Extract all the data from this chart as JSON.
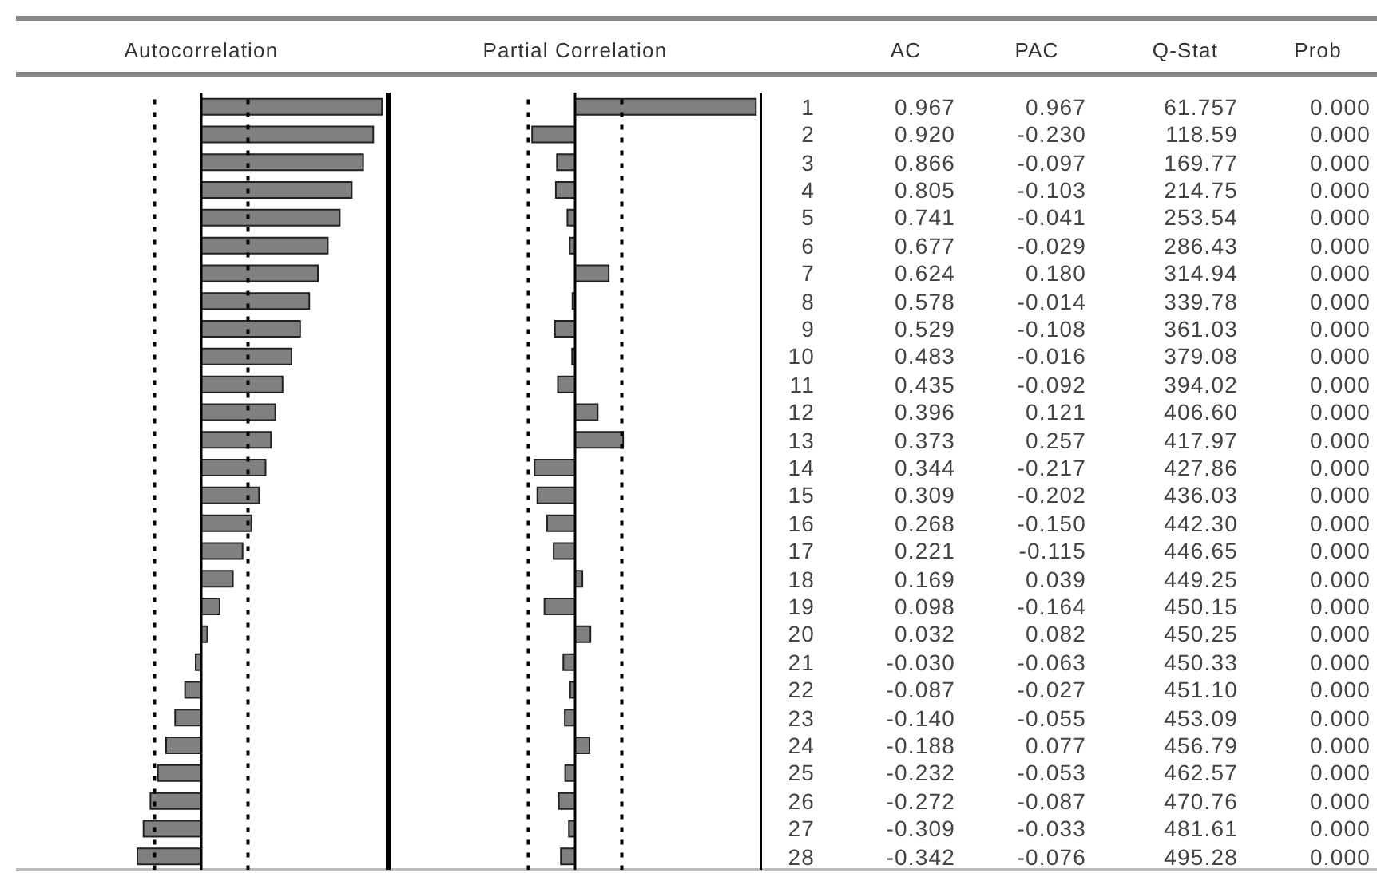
{
  "chart_data": [
    {
      "type": "bar",
      "orientation": "horizontal",
      "title": "Autocorrelation",
      "categories": [
        "1",
        "2",
        "3",
        "4",
        "5",
        "6",
        "7",
        "8",
        "9",
        "10",
        "11",
        "12",
        "13",
        "14",
        "15",
        "16",
        "17",
        "18",
        "19",
        "20",
        "21",
        "22",
        "23",
        "24",
        "25",
        "26",
        "27",
        "28"
      ],
      "series": [
        {
          "name": "AC",
          "color": "#808080",
          "values": [
            0.967,
            0.92,
            0.866,
            0.805,
            0.741,
            0.677,
            0.624,
            0.578,
            0.529,
            0.483,
            0.435,
            0.396,
            0.373,
            0.344,
            0.309,
            0.268,
            0.221,
            0.169,
            0.098,
            0.032,
            -0.03,
            -0.087,
            -0.14,
            -0.188,
            -0.232,
            -0.272,
            -0.309,
            -0.342
          ],
          "value_labels": [
            "0.967",
            "0.920",
            "0.866",
            "0.805",
            "0.741",
            "0.677",
            "0.624",
            "0.578",
            "0.529",
            "0.483",
            "0.435",
            "0.396",
            "0.373",
            "0.344",
            "0.309",
            "0.268",
            "0.221",
            "0.169",
            "0.098",
            "0.032",
            "-0.030",
            "-0.087",
            "-0.140",
            "-0.188",
            "-0.232",
            "-0.272",
            "-0.309",
            "-0.342"
          ]
        }
      ],
      "xlim": [
        -1,
        1
      ],
      "tick_labels": "y",
      "ref_lines": [
        {
          "axis": "x",
          "value": -0.25,
          "line_style": "dashed",
          "color": "#000000"
        },
        {
          "axis": "x",
          "value": 0.25,
          "line_style": "dashed",
          "color": "#000000"
        }
      ]
    },
    {
      "type": "bar",
      "orientation": "horizontal",
      "title": "Partial Correlation",
      "categories": [
        "1",
        "2",
        "3",
        "4",
        "5",
        "6",
        "7",
        "8",
        "9",
        "10",
        "11",
        "12",
        "13",
        "14",
        "15",
        "16",
        "17",
        "18",
        "19",
        "20",
        "21",
        "22",
        "23",
        "24",
        "25",
        "26",
        "27",
        "28"
      ],
      "series": [
        {
          "name": "PAC",
          "color": "#808080",
          "values": [
            0.967,
            -0.23,
            -0.097,
            -0.103,
            -0.041,
            -0.029,
            0.18,
            -0.014,
            -0.108,
            -0.016,
            -0.092,
            0.121,
            0.257,
            -0.217,
            -0.202,
            -0.15,
            -0.115,
            0.039,
            -0.164,
            0.082,
            -0.063,
            -0.027,
            -0.055,
            0.077,
            -0.053,
            -0.087,
            -0.033,
            -0.076
          ],
          "value_labels": [
            "0.967",
            "-0.230",
            "-0.097",
            "-0.103",
            "-0.041",
            "-0.029",
            "0.180",
            "-0.014",
            "-0.108",
            "-0.016",
            "-0.092",
            "0.121",
            "0.257",
            "-0.217",
            "-0.202",
            "-0.150",
            "-0.115",
            "0.039",
            "-0.164",
            "0.082",
            "-0.063",
            "-0.027",
            "-0.055",
            "0.077",
            "-0.053",
            "-0.087",
            "-0.033",
            "-0.076"
          ]
        }
      ],
      "xlim": [
        -1,
        1
      ],
      "tick_labels": false,
      "ref_lines": [
        {
          "axis": "x",
          "value": -0.25,
          "line_style": "dashed",
          "color": "#000000"
        },
        {
          "axis": "x",
          "value": 0.25,
          "line_style": "dashed",
          "color": "#000000"
        }
      ]
    },
    {
      "type": "other",
      "annotations": [
        "Q-Stat",
        "61.757",
        "118.59",
        "169.77",
        "214.75",
        "253.54",
        "286.43",
        "314.94",
        "339.78",
        "361.03",
        "379.08",
        "394.02",
        "406.60",
        "417.97",
        "427.86",
        "436.03",
        "442.30",
        "446.65",
        "449.25",
        "450.15",
        "450.25",
        "450.33",
        "451.10",
        "453.09",
        "456.79",
        "462.57",
        "470.76",
        "481.61",
        "495.28",
        "Prob",
        "0.000",
        "0.000",
        "0.000",
        "0.000",
        "0.000",
        "0.000",
        "0.000",
        "0.000",
        "0.000",
        "0.000",
        "0.000",
        "0.000",
        "0.000",
        "0.000",
        "0.000",
        "0.000",
        "0.000",
        "0.000",
        "0.000",
        "0.000",
        "0.000",
        "0.000",
        "0.000",
        "0.000",
        "0.000",
        "0.000",
        "0.000",
        "0.000"
      ]
    }
  ]
}
